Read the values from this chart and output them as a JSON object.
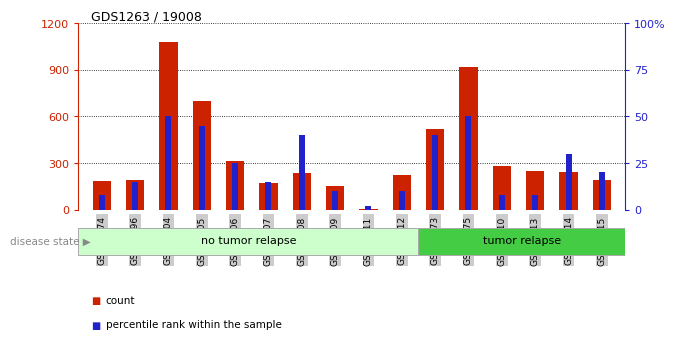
{
  "title": "GDS1263 / 19008",
  "samples": [
    "GSM50474",
    "GSM50496",
    "GSM50504",
    "GSM50505",
    "GSM50506",
    "GSM50507",
    "GSM50508",
    "GSM50509",
    "GSM50511",
    "GSM50512",
    "GSM50473",
    "GSM50475",
    "GSM50510",
    "GSM50513",
    "GSM50514",
    "GSM50515"
  ],
  "count_values": [
    185,
    190,
    1080,
    700,
    310,
    170,
    235,
    155,
    5,
    220,
    520,
    920,
    280,
    250,
    240,
    190
  ],
  "percentile_values": [
    8,
    15,
    50,
    45,
    25,
    15,
    40,
    10,
    2,
    10,
    40,
    50,
    8,
    8,
    30,
    20
  ],
  "no_tumor_count": 10,
  "tumor_count": 6,
  "bar_color_count": "#cc2200",
  "bar_color_pct": "#2222cc",
  "left_ylim": [
    0,
    1200
  ],
  "right_ylim": [
    0,
    100
  ],
  "left_yticks": [
    0,
    300,
    600,
    900,
    1200
  ],
  "right_yticks": [
    0,
    25,
    50,
    75,
    100
  ],
  "right_yticklabels": [
    "0",
    "25",
    "50",
    "75",
    "100%"
  ],
  "left_color": "#cc2200",
  "right_color": "#2222cc",
  "bg_color_no_tumor": "#ccffcc",
  "bg_color_tumor": "#44cc44",
  "tick_bg_color": "#cccccc",
  "disease_state_label": "disease state",
  "no_tumor_label": "no tumor relapse",
  "tumor_label": "tumor relapse",
  "legend_count": "count",
  "legend_pct": "percentile rank within the sample",
  "bar_width": 0.55,
  "pct_bar_width": 0.18
}
